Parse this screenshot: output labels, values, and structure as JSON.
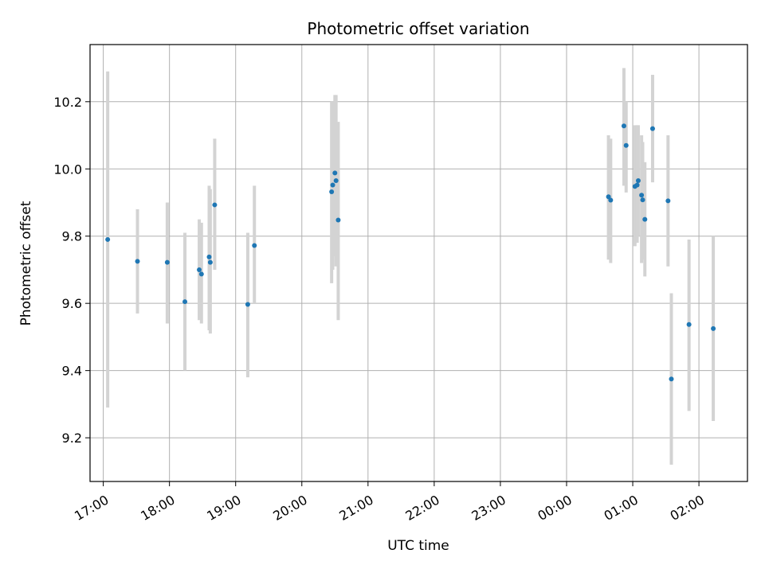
{
  "chart_data": {
    "type": "scatter",
    "title": "Photometric offset variation",
    "xlabel": "UTC time",
    "ylabel": "Photometric offset",
    "x_unit": "UTC time (HH:MM), crosses midnight between 23:00 and 00:00",
    "xlim": [
      "16:48",
      "02:44"
    ],
    "ylim": [
      9.07,
      10.37
    ],
    "x_ticks": [
      "17:00",
      "18:00",
      "19:00",
      "20:00",
      "21:00",
      "22:00",
      "23:00",
      "00:00",
      "01:00",
      "02:00"
    ],
    "y_ticks": [
      9.2,
      9.4,
      9.6,
      9.8,
      10.0,
      10.2
    ],
    "y_tick_labels": [
      "9.2",
      "9.4",
      "9.6",
      "9.8",
      "10.0",
      "10.2"
    ],
    "grid": true,
    "point_color": "#1f77b4",
    "errorbar_color": "#d3d3d3",
    "points": [
      {
        "time": "17:04",
        "y": 9.79,
        "err_low": 9.29,
        "err_high": 10.29
      },
      {
        "time": "17:31",
        "y": 9.725,
        "err_low": 9.57,
        "err_high": 9.88
      },
      {
        "time": "17:58",
        "y": 9.722,
        "err_low": 9.54,
        "err_high": 9.9
      },
      {
        "time": "18:14",
        "y": 9.605,
        "err_low": 9.4,
        "err_high": 9.81
      },
      {
        "time": "18:27",
        "y": 9.7,
        "err_low": 9.55,
        "err_high": 9.85
      },
      {
        "time": "18:29",
        "y": 9.687,
        "err_low": 9.54,
        "err_high": 9.84
      },
      {
        "time": "18:36",
        "y": 9.738,
        "err_low": 9.52,
        "err_high": 9.95
      },
      {
        "time": "18:37",
        "y": 9.722,
        "err_low": 9.51,
        "err_high": 9.94
      },
      {
        "time": "18:41",
        "y": 9.893,
        "err_low": 9.7,
        "err_high": 10.09
      },
      {
        "time": "19:11",
        "y": 9.597,
        "err_low": 9.38,
        "err_high": 9.81
      },
      {
        "time": "19:17",
        "y": 9.772,
        "err_low": 9.6,
        "err_high": 9.95
      },
      {
        "time": "20:27",
        "y": 9.932,
        "err_low": 9.66,
        "err_high": 10.2
      },
      {
        "time": "20:28",
        "y": 9.952,
        "err_low": 9.7,
        "err_high": 10.2
      },
      {
        "time": "20:30",
        "y": 9.988,
        "err_low": 9.74,
        "err_high": 10.22
      },
      {
        "time": "20:31",
        "y": 9.965,
        "err_low": 9.71,
        "err_high": 10.22
      },
      {
        "time": "20:33",
        "y": 9.848,
        "err_low": 9.55,
        "err_high": 10.14
      },
      {
        "time": "00:38",
        "y": 9.917,
        "err_low": 9.73,
        "err_high": 10.1
      },
      {
        "time": "00:40",
        "y": 9.907,
        "err_low": 9.72,
        "err_high": 10.09
      },
      {
        "time": "00:52",
        "y": 10.128,
        "err_low": 9.95,
        "err_high": 10.3
      },
      {
        "time": "00:54",
        "y": 10.07,
        "err_low": 9.93,
        "err_high": 10.2
      },
      {
        "time": "01:02",
        "y": 9.948,
        "err_low": 9.77,
        "err_high": 10.13
      },
      {
        "time": "01:04",
        "y": 9.952,
        "err_low": 9.78,
        "err_high": 10.13
      },
      {
        "time": "01:05",
        "y": 9.965,
        "err_low": 9.8,
        "err_high": 10.13
      },
      {
        "time": "01:08",
        "y": 9.922,
        "err_low": 9.72,
        "err_high": 10.1
      },
      {
        "time": "01:09",
        "y": 9.908,
        "err_low": 9.73,
        "err_high": 10.08
      },
      {
        "time": "01:11",
        "y": 9.85,
        "err_low": 9.68,
        "err_high": 10.02
      },
      {
        "time": "01:18",
        "y": 10.12,
        "err_low": 9.96,
        "err_high": 10.28
      },
      {
        "time": "01:32",
        "y": 9.905,
        "err_low": 9.71,
        "err_high": 10.1
      },
      {
        "time": "01:35",
        "y": 9.375,
        "err_low": 9.12,
        "err_high": 9.63
      },
      {
        "time": "01:51",
        "y": 9.537,
        "err_low": 9.28,
        "err_high": 9.79
      },
      {
        "time": "02:13",
        "y": 9.525,
        "err_low": 9.25,
        "err_high": 9.8
      }
    ]
  }
}
